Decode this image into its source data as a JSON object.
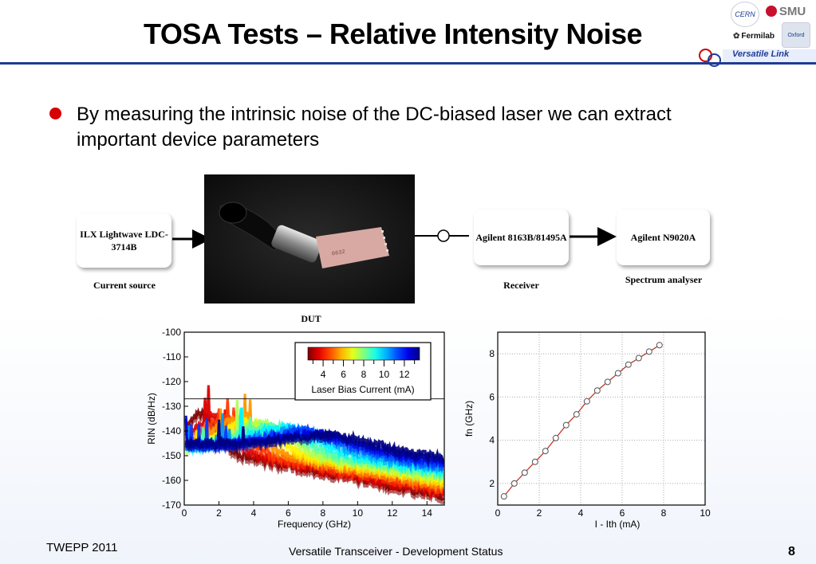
{
  "slide": {
    "title": "TOSA Tests – Relative Intensity Noise",
    "header_logos": [
      "CERN",
      "SMU",
      "Fermilab",
      "Oxford"
    ],
    "header_banner": "Versatile Link",
    "bullet": "By measuring the intrinsic noise of the DC-biased laser we can extract important device parameters"
  },
  "diagram": {
    "source_box": "ILX Lightwave LDC-3714B",
    "source_caption": "Current source",
    "dut_caption": "DUT",
    "receiver_box": "Agilent 8163B/81495A",
    "receiver_caption": "Receiver",
    "analyser_box": "Agilent N9020A",
    "analyser_caption": "Spectrum analyser"
  },
  "chart_data": [
    {
      "type": "line",
      "xlabel": "Frequency (GHz)",
      "ylabel": "RIN (dB/Hz)",
      "xlim": [
        0,
        15
      ],
      "ylim": [
        -170,
        -100
      ],
      "xticks": [
        0,
        2,
        4,
        6,
        8,
        10,
        12,
        14
      ],
      "yticks": [
        -100,
        -110,
        -120,
        -130,
        -140,
        -150,
        -160,
        -170
      ],
      "colorbar": {
        "label": "Laser Bias Current (mA)",
        "ticks": [
          4,
          6,
          8,
          10,
          12
        ],
        "range": [
          2.5,
          13.5
        ]
      },
      "series_note_range": [
        2.5,
        13.5
      ],
      "series_count": 12
    },
    {
      "type": "scatter",
      "xlabel": "I - Ith (mA)",
      "ylabel": "fn (GHz)",
      "xlim": [
        0,
        10
      ],
      "ylim": [
        1,
        9
      ],
      "xticks": [
        0,
        2,
        4,
        6,
        8,
        10
      ],
      "yticks": [
        2,
        4,
        6,
        8
      ],
      "grid": true,
      "x": [
        0.3,
        0.8,
        1.3,
        1.8,
        2.3,
        2.8,
        3.3,
        3.8,
        4.3,
        4.8,
        5.3,
        5.8,
        6.3,
        6.8,
        7.3,
        7.8
      ],
      "y": [
        1.4,
        2.0,
        2.5,
        3.0,
        3.5,
        4.1,
        4.7,
        5.2,
        5.8,
        6.3,
        6.7,
        7.1,
        7.5,
        7.8,
        8.1,
        8.4
      ]
    }
  ],
  "footer": {
    "left": "TWEPP 2011",
    "center": "Versatile Transceiver - Development Status",
    "page": "8"
  }
}
